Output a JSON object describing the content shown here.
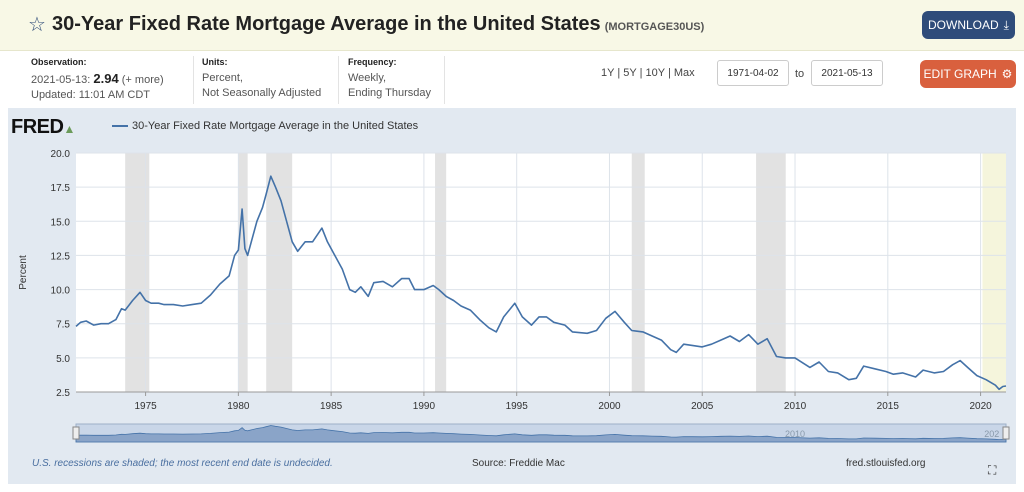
{
  "header": {
    "title": "30-Year Fixed Rate Mortgage Average in the United States",
    "series_id": "(MORTGAGE30US)",
    "download_label": "DOWNLOAD",
    "star_icon": "star-outline-icon",
    "download_icon": "download-icon"
  },
  "meta": {
    "observation_label": "Observation:",
    "observation_date": "2021-05-13:",
    "observation_value": "2.94",
    "observation_more": "(+ more)",
    "updated": "Updated: 11:01 AM CDT",
    "units_label": "Units:",
    "units_line1": "Percent,",
    "units_line2": "Not Seasonally Adjusted",
    "frequency_label": "Frequency:",
    "frequency_line1": "Weekly,",
    "frequency_line2": "Ending Thursday"
  },
  "controls": {
    "range_1y": "1Y",
    "range_5y": "5Y",
    "range_10y": "10Y",
    "range_max": "Max",
    "sep": "|",
    "start_date": "1971-04-02",
    "to_label": "to",
    "end_date": "2021-05-13",
    "edit_label": "EDIT GRAPH",
    "gear_icon": "gear-icon"
  },
  "footer": {
    "recession_note": "U.S. recessions are shaded; the most recent end date is undecided.",
    "source": "Source: Freddie Mac",
    "site": "fred.stlouisfed.org",
    "expand_icon": "fullscreen-icon"
  },
  "chart_data": {
    "type": "line",
    "logo": "FRED",
    "legend": "30-Year Fixed Rate Mortgage Average in the United States",
    "ylabel": "Percent",
    "ylim": [
      2.5,
      20.0
    ],
    "xlim": [
      1971.25,
      2021.37
    ],
    "yticks": [
      "2.5",
      "5.0",
      "7.5",
      "10.0",
      "12.5",
      "15.0",
      "17.5",
      "20.0"
    ],
    "xticks": [
      "1975",
      "1980",
      "1985",
      "1990",
      "1995",
      "2000",
      "2005",
      "2010",
      "2015",
      "2020"
    ],
    "navigator_labels": [
      "2010",
      "202"
    ],
    "line_color": "#4472a8",
    "recessions": [
      [
        1973.9,
        1975.2
      ],
      [
        1980.0,
        1980.5
      ],
      [
        1981.5,
        1982.9
      ],
      [
        1990.6,
        1991.2
      ],
      [
        2001.2,
        2001.9
      ],
      [
        2007.9,
        2009.5
      ],
      [
        2020.1,
        2021.37
      ]
    ],
    "series": [
      {
        "x": [
          1971.25,
          1971.5,
          1971.8,
          1972.2,
          1972.6,
          1973.0,
          1973.4,
          1973.7,
          1973.9,
          1974.3,
          1974.7,
          1975.0,
          1975.3,
          1975.7,
          1976.0,
          1976.5,
          1977.0,
          1977.5,
          1978.0,
          1978.5,
          1979.0,
          1979.5,
          1979.8,
          1980.0,
          1980.2,
          1980.35,
          1980.5,
          1980.7,
          1981.0,
          1981.3,
          1981.5,
          1981.75,
          1982.0,
          1982.3,
          1982.6,
          1982.9,
          1983.2,
          1983.6,
          1984.0,
          1984.5,
          1984.8,
          1985.2,
          1985.6,
          1986.0,
          1986.3,
          1986.6,
          1987.0,
          1987.3,
          1987.8,
          1988.3,
          1988.8,
          1989.2,
          1989.5,
          1990.0,
          1990.5,
          1990.8,
          1991.2,
          1991.6,
          1992.0,
          1992.5,
          1993.0,
          1993.5,
          1993.9,
          1994.3,
          1994.9,
          1995.3,
          1995.8,
          1996.2,
          1996.6,
          1997.0,
          1997.6,
          1998.0,
          1998.8,
          1999.3,
          1999.8,
          2000.3,
          2000.8,
          2001.2,
          2001.8,
          2002.3,
          2002.8,
          2003.3,
          2003.6,
          2004.0,
          2004.5,
          2005.0,
          2005.5,
          2006.0,
          2006.5,
          2007.0,
          2007.5,
          2008.0,
          2008.5,
          2009.0,
          2009.5,
          2010.0,
          2010.8,
          2011.3,
          2011.8,
          2012.3,
          2012.9,
          2013.3,
          2013.7,
          2014.3,
          2014.9,
          2015.3,
          2015.8,
          2016.5,
          2016.9,
          2017.5,
          2018.0,
          2018.5,
          2018.9,
          2019.3,
          2019.8,
          2020.3,
          2020.8,
          2021.0,
          2021.2,
          2021.37
        ],
        "y": [
          7.3,
          7.6,
          7.7,
          7.4,
          7.5,
          7.5,
          7.8,
          8.6,
          8.5,
          9.2,
          9.8,
          9.2,
          9.0,
          9.0,
          8.9,
          8.9,
          8.8,
          8.9,
          9.0,
          9.6,
          10.4,
          11.0,
          12.5,
          12.9,
          15.9,
          13.0,
          12.5,
          13.5,
          15.0,
          16.0,
          17.0,
          18.3,
          17.5,
          16.5,
          15.0,
          13.5,
          12.8,
          13.5,
          13.5,
          14.5,
          13.5,
          12.5,
          11.5,
          10.0,
          9.8,
          10.2,
          9.5,
          10.5,
          10.6,
          10.2,
          10.8,
          10.8,
          10.0,
          10.0,
          10.3,
          10.0,
          9.5,
          9.2,
          8.8,
          8.5,
          7.8,
          7.2,
          6.9,
          8.0,
          9.0,
          8.0,
          7.4,
          8.0,
          8.0,
          7.6,
          7.4,
          6.9,
          6.8,
          7.0,
          7.9,
          8.4,
          7.6,
          7.0,
          6.9,
          6.6,
          6.3,
          5.6,
          5.4,
          6.0,
          5.9,
          5.8,
          6.0,
          6.3,
          6.6,
          6.2,
          6.7,
          6.0,
          6.4,
          5.1,
          5.0,
          5.0,
          4.3,
          4.7,
          4.0,
          3.9,
          3.4,
          3.5,
          4.4,
          4.2,
          4.0,
          3.8,
          3.9,
          3.6,
          4.1,
          3.9,
          4.0,
          4.5,
          4.8,
          4.3,
          3.7,
          3.4,
          3.0,
          2.7,
          2.9,
          2.94
        ]
      }
    ]
  }
}
